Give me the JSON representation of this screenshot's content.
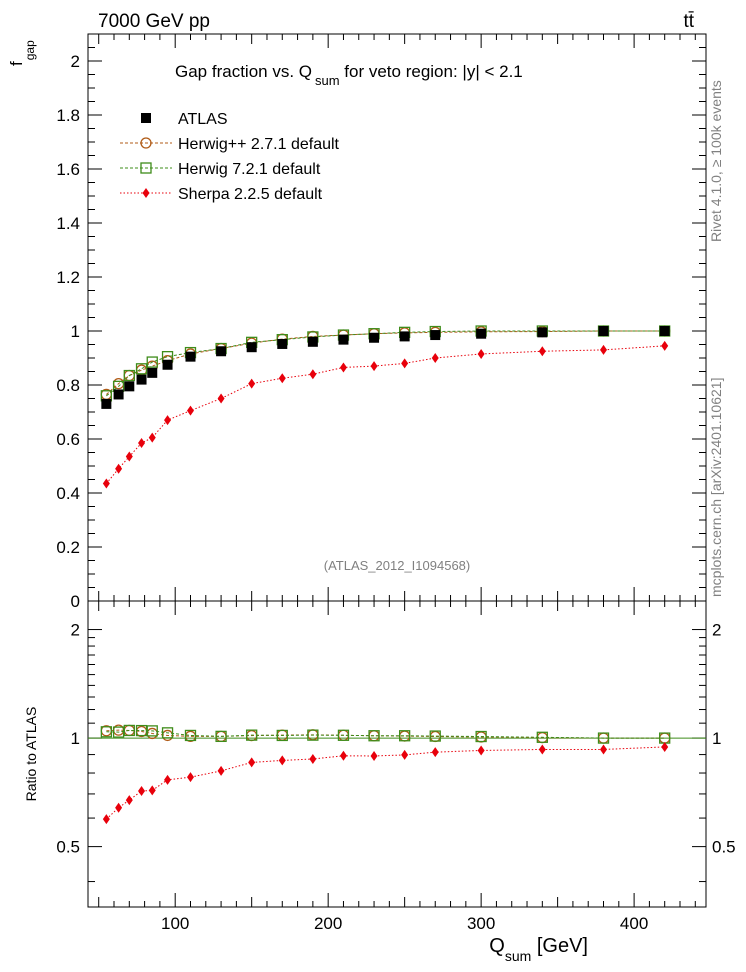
{
  "header": {
    "energy_label": "7000 GeV pp",
    "process_label": "tt̄"
  },
  "side_labels": {
    "rivet": "Rivet 4.1.0, ≥ 100k events",
    "mcplots": "mcplots.cern.ch [arXiv:2401.10621]"
  },
  "chart_data": {
    "type": "scatter",
    "title": "Gap fraction vs. Q",
    "title_sub": "sum",
    "title_rest": " for veto region: |y| < 2.1",
    "analysis_label": "(ATLAS_2012_I1094568)",
    "xlabel_main": "Q",
    "xlabel_sub": "sum",
    "xlabel_unit": " [GeV]",
    "ylabel_main": "f",
    "ylabel_sub": "gap",
    "ratio_ylabel": "Ratio to ATLAS",
    "xlim": [
      43,
      447
    ],
    "ylim": [
      0,
      2.1
    ],
    "ratio_ylim": [
      0.34,
      2.4
    ],
    "x_ticks": [
      "100",
      "200",
      "300",
      "400"
    ],
    "y_ticks": [
      "0",
      "0.2",
      "0.4",
      "0.6",
      "0.8",
      "1",
      "1.2",
      "1.4",
      "1.6",
      "1.8",
      "2"
    ],
    "ratio_ticks": [
      "0.5",
      "1",
      "2"
    ],
    "x": [
      55,
      63,
      70,
      78,
      85,
      95,
      110,
      130,
      150,
      170,
      190,
      210,
      230,
      250,
      270,
      300,
      340,
      380,
      420
    ],
    "series": [
      {
        "name": "ATLAS",
        "color": "#000000",
        "marker": "filled-square",
        "values": [
          0.73,
          0.765,
          0.795,
          0.82,
          0.845,
          0.875,
          0.905,
          0.925,
          0.94,
          0.952,
          0.96,
          0.968,
          0.975,
          0.98,
          0.985,
          0.99,
          0.995,
          1.0,
          1.0
        ],
        "ratio": [
          1,
          1,
          1,
          1,
          1,
          1,
          1,
          1,
          1,
          1,
          1,
          1,
          1,
          1,
          1,
          1,
          1,
          1,
          1
        ]
      },
      {
        "name": "Herwig++ 2.7.1 default",
        "color": "#b05b17",
        "marker": "open-circle",
        "line": "dashed",
        "values": [
          0.765,
          0.805,
          0.835,
          0.855,
          0.87,
          0.89,
          0.915,
          0.935,
          0.955,
          0.97,
          0.98,
          0.985,
          0.99,
          0.993,
          0.995,
          0.997,
          0.998,
          1.0,
          1.0
        ],
        "ratio": [
          1.048,
          1.052,
          1.05,
          1.043,
          1.03,
          1.017,
          1.011,
          1.011,
          1.016,
          1.019,
          1.021,
          1.018,
          1.015,
          1.013,
          1.01,
          1.007,
          1.003,
          1.0,
          1.0
        ]
      },
      {
        "name": "Herwig 7.2.1 default",
        "color": "#3e8c1a",
        "marker": "open-square",
        "line": "dashed",
        "values": [
          0.76,
          0.795,
          0.835,
          0.86,
          0.885,
          0.905,
          0.92,
          0.935,
          0.958,
          0.968,
          0.978,
          0.985,
          0.99,
          0.995,
          0.998,
          1.0,
          1.0,
          1.0,
          1.0
        ],
        "ratio": [
          1.041,
          1.039,
          1.05,
          1.049,
          1.047,
          1.034,
          1.017,
          1.011,
          1.019,
          1.017,
          1.019,
          1.018,
          1.015,
          1.015,
          1.013,
          1.01,
          1.005,
          1.0,
          1.0
        ]
      },
      {
        "name": "Sherpa 2.2.5 default",
        "color": "#e8000b",
        "marker": "filled-diamond",
        "line": "dotted",
        "values": [
          0.435,
          0.49,
          0.535,
          0.585,
          0.605,
          0.67,
          0.705,
          0.75,
          0.805,
          0.825,
          0.84,
          0.865,
          0.87,
          0.88,
          0.9,
          0.915,
          0.925,
          0.93,
          0.945
        ],
        "ratio": [
          0.596,
          0.641,
          0.673,
          0.713,
          0.716,
          0.766,
          0.779,
          0.811,
          0.856,
          0.867,
          0.875,
          0.893,
          0.892,
          0.898,
          0.914,
          0.924,
          0.93,
          0.93,
          0.945
        ]
      }
    ]
  }
}
